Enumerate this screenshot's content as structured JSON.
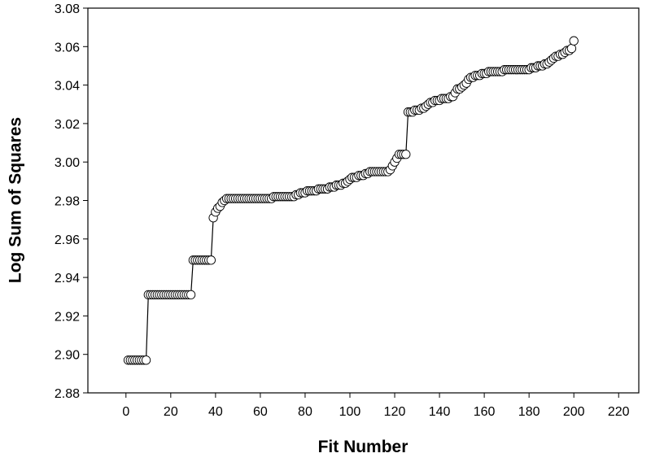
{
  "chart_data": {
    "type": "scatter",
    "x_label": "Fit Number",
    "y_label": "Log Sum of Squares",
    "xlim": [
      -17,
      229
    ],
    "ylim": [
      2.88,
      3.08
    ],
    "xticks": [
      0,
      20,
      40,
      60,
      80,
      100,
      120,
      140,
      160,
      180,
      200,
      220
    ],
    "yticks": [
      2.88,
      {
        "value": 2.9,
        "label": "2.90"
      },
      2.92,
      2.94,
      2.96,
      2.98,
      {
        "value": 3,
        "label": "3.00"
      },
      3.02,
      3.04,
      3.06,
      3.08
    ],
    "series": [
      {
        "color": "#000000",
        "x": [
          1,
          2,
          3,
          4,
          5,
          6,
          7,
          8,
          9,
          10,
          11,
          12,
          13,
          14,
          15,
          16,
          17,
          18,
          19,
          20,
          21,
          22,
          23,
          24,
          25,
          26,
          27,
          28,
          29,
          30,
          31,
          32,
          33,
          34,
          35,
          36,
          37,
          38,
          39,
          40,
          41,
          42,
          43,
          44,
          45,
          46,
          47,
          48,
          49,
          50,
          51,
          52,
          53,
          54,
          55,
          56,
          57,
          58,
          59,
          60,
          61,
          62,
          63,
          64,
          65,
          66,
          67,
          68,
          69,
          70,
          71,
          72,
          73,
          74,
          75,
          76,
          77,
          78,
          79,
          80,
          81,
          82,
          83,
          84,
          85,
          86,
          87,
          88,
          89,
          90,
          91,
          92,
          93,
          94,
          95,
          96,
          97,
          98,
          99,
          100,
          101,
          102,
          103,
          104,
          105,
          106,
          107,
          108,
          109,
          110,
          111,
          112,
          113,
          114,
          115,
          116,
          117,
          118,
          119,
          120,
          121,
          122,
          123,
          124,
          125,
          126,
          127,
          128,
          129,
          130,
          131,
          132,
          133,
          134,
          135,
          136,
          137,
          138,
          139,
          140,
          141,
          142,
          143,
          144,
          145,
          146,
          147,
          148,
          149,
          150,
          151,
          152,
          153,
          154,
          155,
          156,
          157,
          158,
          159,
          160,
          161,
          162,
          163,
          164,
          165,
          166,
          167,
          168,
          169,
          170,
          171,
          172,
          173,
          174,
          175,
          176,
          177,
          178,
          179,
          180,
          181,
          182,
          183,
          184,
          185,
          186,
          187,
          188,
          189,
          190,
          191,
          192,
          193,
          194,
          195,
          196,
          197,
          198,
          199,
          200
        ],
        "values": [
          2.897,
          2.897,
          2.897,
          2.897,
          2.897,
          2.897,
          2.897,
          2.897,
          2.897,
          2.931,
          2.931,
          2.931,
          2.931,
          2.931,
          2.931,
          2.931,
          2.931,
          2.931,
          2.931,
          2.931,
          2.931,
          2.931,
          2.931,
          2.931,
          2.931,
          2.931,
          2.931,
          2.931,
          2.931,
          2.949,
          2.949,
          2.949,
          2.949,
          2.949,
          2.949,
          2.949,
          2.949,
          2.949,
          2.971,
          2.974,
          2.976,
          2.977,
          2.979,
          2.98,
          2.981,
          2.981,
          2.981,
          2.981,
          2.981,
          2.981,
          2.981,
          2.981,
          2.981,
          2.981,
          2.981,
          2.981,
          2.981,
          2.981,
          2.981,
          2.981,
          2.981,
          2.981,
          2.981,
          2.981,
          2.981,
          2.982,
          2.982,
          2.982,
          2.982,
          2.982,
          2.982,
          2.982,
          2.982,
          2.982,
          2.982,
          2.983,
          2.983,
          2.984,
          2.984,
          2.984,
          2.985,
          2.985,
          2.985,
          2.985,
          2.985,
          2.986,
          2.986,
          2.986,
          2.986,
          2.986,
          2.987,
          2.987,
          2.987,
          2.988,
          2.988,
          2.988,
          2.989,
          2.989,
          2.99,
          2.991,
          2.992,
          2.992,
          2.992,
          2.993,
          2.993,
          2.993,
          2.994,
          2.994,
          2.995,
          2.995,
          2.995,
          2.995,
          2.995,
          2.995,
          2.995,
          2.995,
          2.995,
          2.996,
          2.998,
          3.0,
          3.002,
          3.004,
          3.004,
          3.004,
          3.004,
          3.026,
          3.026,
          3.026,
          3.027,
          3.027,
          3.027,
          3.028,
          3.028,
          3.029,
          3.03,
          3.031,
          3.031,
          3.032,
          3.032,
          3.032,
          3.033,
          3.033,
          3.033,
          3.033,
          3.034,
          3.034,
          3.036,
          3.038,
          3.038,
          3.039,
          3.04,
          3.041,
          3.043,
          3.044,
          3.044,
          3.045,
          3.045,
          3.045,
          3.046,
          3.046,
          3.046,
          3.047,
          3.047,
          3.047,
          3.047,
          3.047,
          3.047,
          3.047,
          3.048,
          3.048,
          3.048,
          3.048,
          3.048,
          3.048,
          3.048,
          3.048,
          3.048,
          3.048,
          3.048,
          3.048,
          3.049,
          3.049,
          3.049,
          3.05,
          3.05,
          3.05,
          3.051,
          3.051,
          3.052,
          3.053,
          3.054,
          3.055,
          3.055,
          3.056,
          3.056,
          3.057,
          3.058,
          3.058,
          3.059,
          3.063
        ]
      }
    ]
  }
}
